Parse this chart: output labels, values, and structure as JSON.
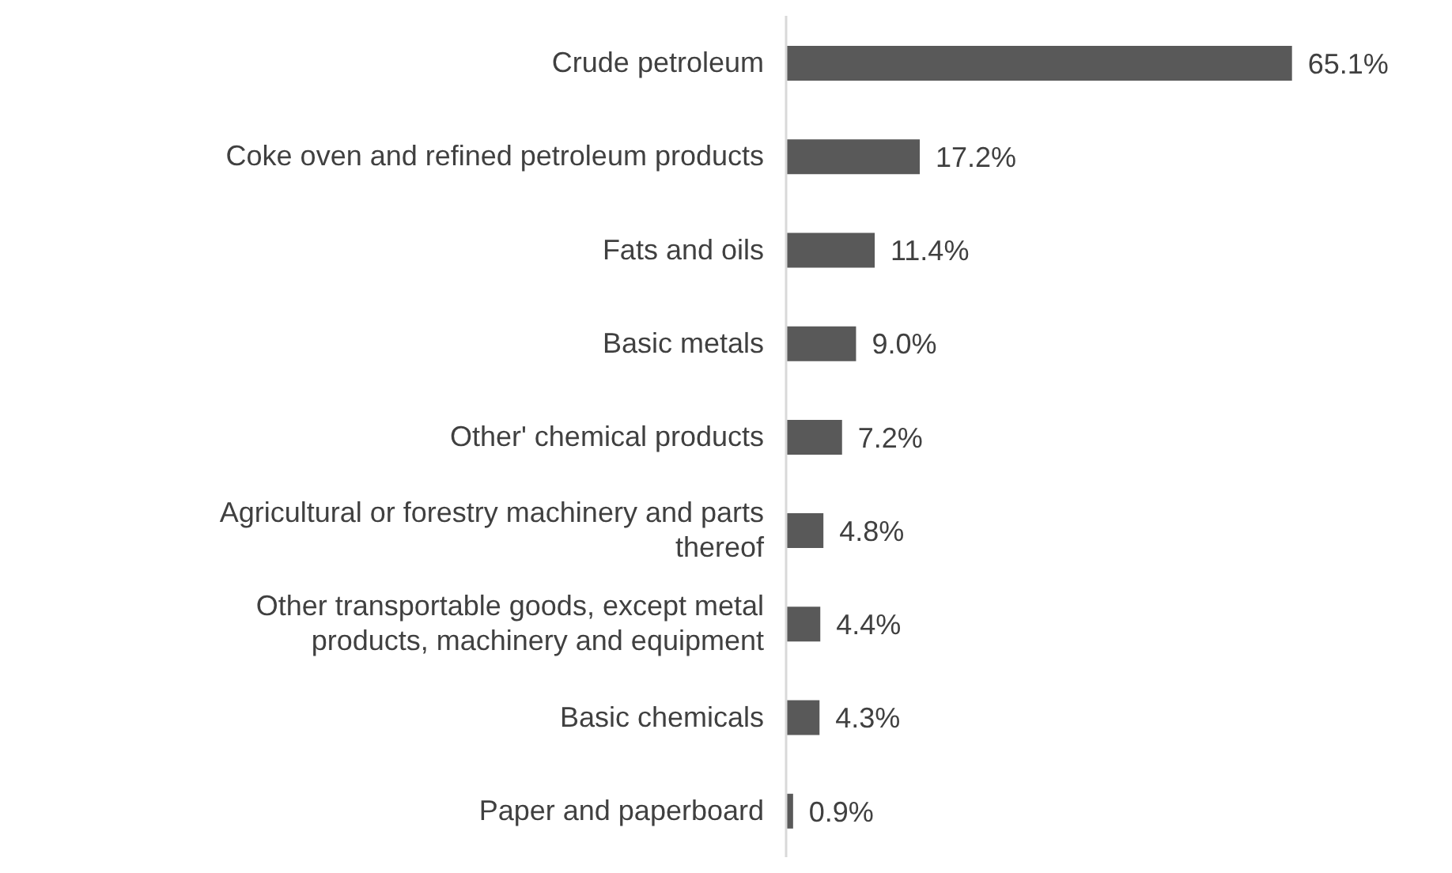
{
  "chart_data": {
    "type": "bar",
    "orientation": "horizontal",
    "categories": [
      "Crude petroleum",
      "Coke oven and refined petroleum products",
      "Fats and oils",
      "Basic metals",
      "Other' chemical products",
      "Agricultural or forestry machinery and parts thereof",
      "Other transportable goods, except metal products, machinery and equipment",
      "Basic chemicals",
      "Paper and paperboard"
    ],
    "values": [
      65.1,
      17.2,
      11.4,
      9.0,
      7.2,
      4.8,
      4.4,
      4.3,
      0.9
    ],
    "value_labels": [
      "65.1%",
      "17.2%",
      "11.4%",
      "9.0%",
      "7.2%",
      "4.8%",
      "4.4%",
      "4.3%",
      "0.9%"
    ],
    "color": "#595959",
    "grid": false,
    "legend": false
  }
}
